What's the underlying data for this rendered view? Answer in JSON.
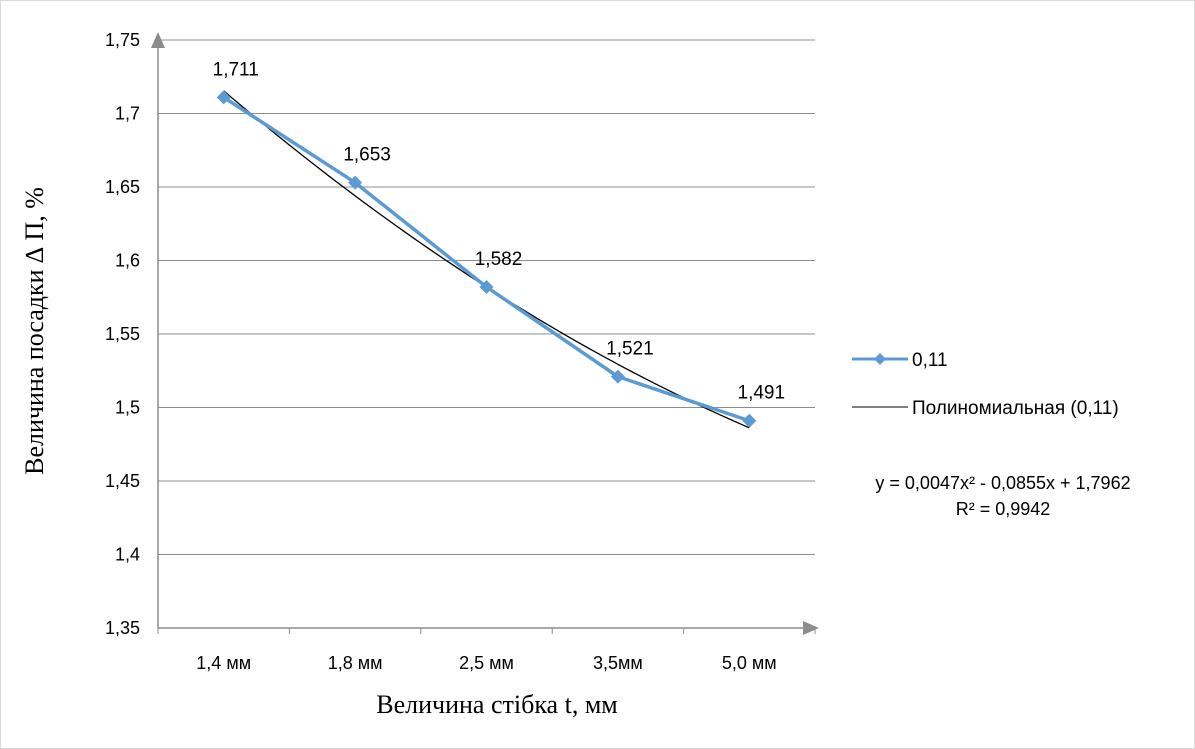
{
  "chart_data": {
    "type": "line",
    "categories": [
      "1,4 мм",
      "1,8 мм",
      "2,5 мм",
      "3,5мм",
      "5,0 мм"
    ],
    "series": [
      {
        "name": "0,11",
        "values": [
          1.711,
          1.653,
          1.582,
          1.521,
          1.491
        ],
        "data_labels": [
          "1,711",
          "1,653",
          "1,582",
          "1,521",
          "1,491"
        ],
        "color": "#5b9bd5",
        "marker": "diamond"
      }
    ],
    "trendline": {
      "name": "Полиномиальная (0,11)",
      "type": "polynomial",
      "order": 2,
      "coefficients": [
        0.0047,
        -0.0855,
        1.7962
      ],
      "color": "#000000",
      "equation": "y = 0,0047x² - 0,0855x + 1,7962",
      "r_squared": "R² = 0,9942"
    },
    "ylim": [
      1.35,
      1.75
    ],
    "yticks": [
      "1,35",
      "1,4",
      "1,45",
      "1,5",
      "1,55",
      "1,6",
      "1,65",
      "1,7",
      "1,75"
    ],
    "xlabel": "Величина стібка t, мм",
    "ylabel": "Величина посадки ∆ П, %",
    "grid": true,
    "legend_position": "right"
  }
}
